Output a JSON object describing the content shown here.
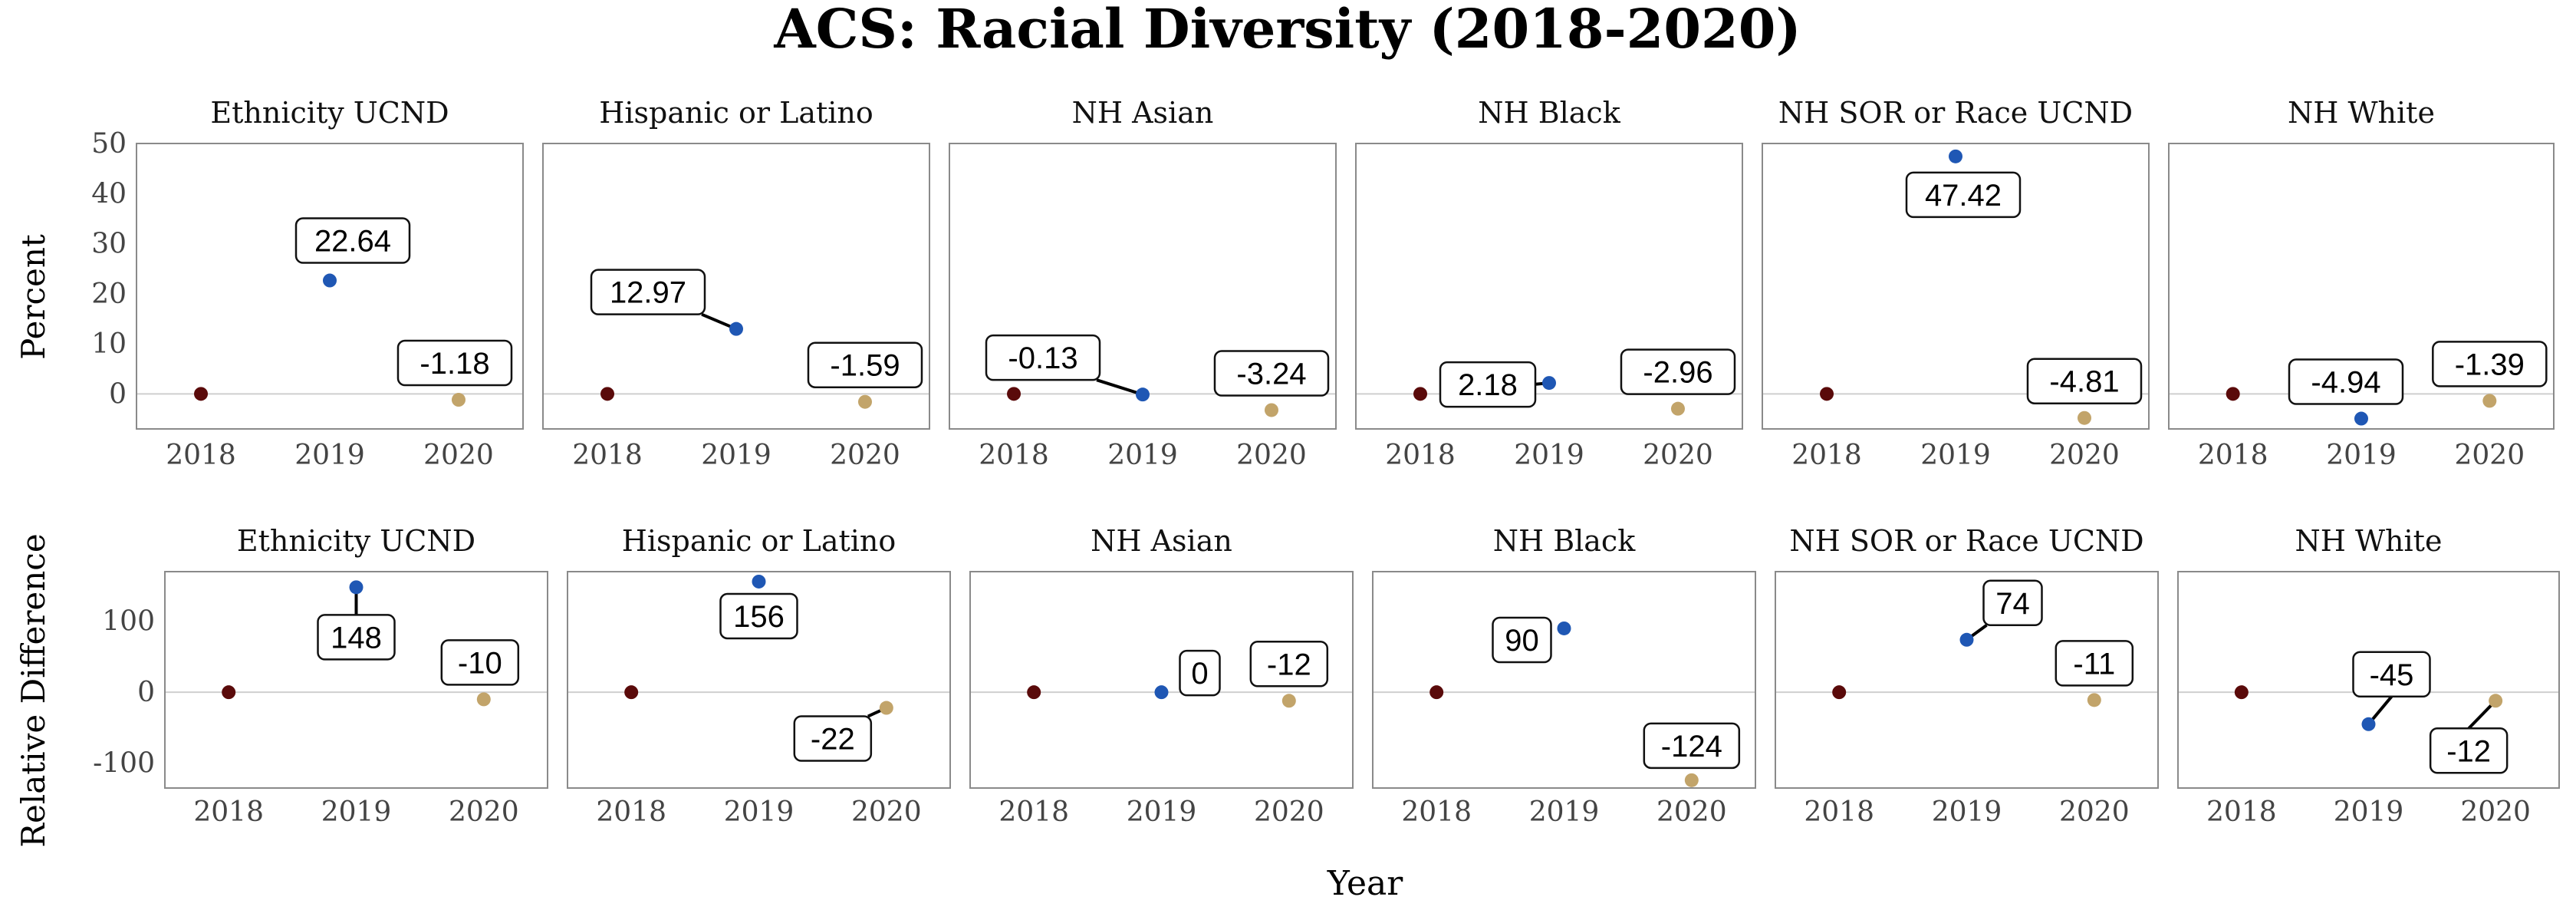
{
  "title": "ACS: Racial Diversity (2018-2020)",
  "xlabel": "Year",
  "colors": {
    "2018": "#5a0a0a",
    "2019": "#1f57b4",
    "2020": "#c2a46a",
    "frame": "#8a8a8a",
    "zero_line": "#cfcfcf"
  },
  "chart_data": [
    {
      "type": "scatter",
      "row": "top",
      "ylabel": "Percent",
      "ylim": [
        -7,
        50
      ],
      "yticks": [
        0,
        10,
        20,
        30,
        40,
        50
      ],
      "x": [
        "2018",
        "2019",
        "2020"
      ],
      "grid": "zero line only",
      "facets": [
        {
          "name": "Ethnicity UCND",
          "values": [
            0,
            22.64,
            -1.18
          ],
          "labels": [
            "",
            "22.64",
            "-1.18"
          ]
        },
        {
          "name": "Hispanic or Latino",
          "values": [
            0,
            12.97,
            -1.59
          ],
          "labels": [
            "",
            "12.97",
            "-1.59"
          ]
        },
        {
          "name": "NH Asian",
          "values": [
            0,
            -0.13,
            -3.24
          ],
          "labels": [
            "",
            "-0.13",
            "-3.24"
          ]
        },
        {
          "name": "NH Black",
          "values": [
            0,
            2.18,
            -2.96
          ],
          "labels": [
            "",
            "2.18",
            "-2.96"
          ]
        },
        {
          "name": "NH SOR or Race UCND",
          "values": [
            0,
            47.42,
            -4.81
          ],
          "labels": [
            "",
            "47.42",
            "-4.81"
          ]
        },
        {
          "name": "NH White",
          "values": [
            0,
            -4.94,
            -1.39
          ],
          "labels": [
            "",
            "-4.94",
            "-1.39"
          ]
        }
      ]
    },
    {
      "type": "scatter",
      "row": "bottom",
      "ylabel": "Relative Difference",
      "ylim": [
        -135,
        170
      ],
      "yticks": [
        -100,
        0,
        100
      ],
      "x": [
        "2018",
        "2019",
        "2020"
      ],
      "grid": "zero line only",
      "facets": [
        {
          "name": "Ethnicity UCND",
          "values": [
            0,
            148,
            -10
          ],
          "labels": [
            "",
            "148",
            "-10"
          ]
        },
        {
          "name": "Hispanic or Latino",
          "values": [
            0,
            156,
            -22
          ],
          "labels": [
            "",
            "156",
            "-22"
          ]
        },
        {
          "name": "NH Asian",
          "values": [
            0,
            0,
            -12
          ],
          "labels": [
            "",
            "0",
            "-12"
          ]
        },
        {
          "name": "NH Black",
          "values": [
            0,
            90,
            -124
          ],
          "labels": [
            "",
            "90",
            "-124"
          ]
        },
        {
          "name": "NH SOR or Race UCND",
          "values": [
            0,
            74,
            -11
          ],
          "labels": [
            "",
            "74",
            "-11"
          ]
        },
        {
          "name": "NH White",
          "values": [
            0,
            -45,
            -12
          ],
          "labels": [
            "",
            "-45",
            "-12"
          ]
        }
      ]
    }
  ]
}
